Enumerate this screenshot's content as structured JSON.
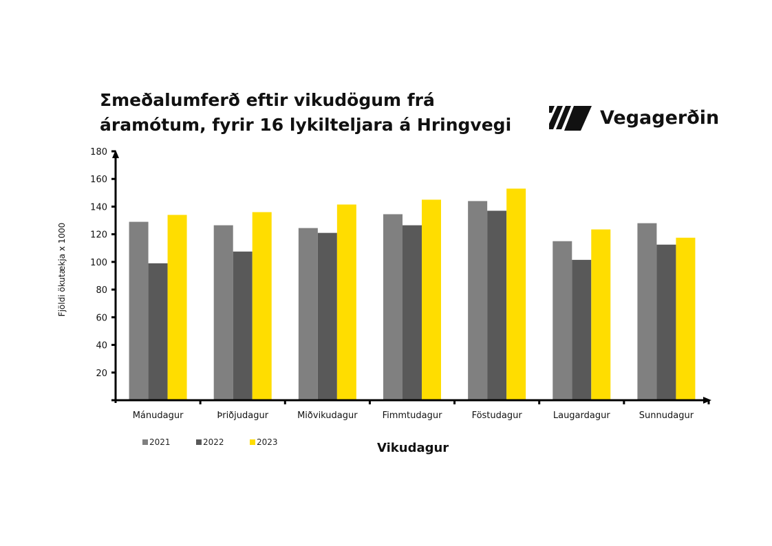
{
  "logo": {
    "text": "Vegagerðin"
  },
  "chart_data": {
    "type": "bar",
    "title": "Σmeðalumferð eftir vikudögum frá áramótum, fyrir 16 lykilteljara á Hringvegi",
    "title_lines": [
      "Σmeðalumferð eftir vikudögum frá",
      "áramótum, fyrir 16 lykilteljara á Hringvegi"
    ],
    "xlabel": "Vikudagur",
    "ylabel": "Fjöldi ökutækja x 1000",
    "ylim": [
      0,
      180
    ],
    "yticks": [
      20,
      40,
      60,
      80,
      100,
      120,
      140,
      160,
      180
    ],
    "grid": false,
    "legend_position": "bottom-left",
    "categories": [
      "Mánudagur",
      "Þriðjudagur",
      "Miðvikudagur",
      "Fimmtudagur",
      "Föstudagur",
      "Laugardagur",
      "Sunnudagur"
    ],
    "series": [
      {
        "name": "2021",
        "color": "#808080",
        "values": [
          129,
          126.5,
          124.5,
          134.5,
          144,
          115,
          128
        ]
      },
      {
        "name": "2022",
        "color": "#595959",
        "values": [
          99,
          107.5,
          121,
          126.5,
          137,
          101.5,
          112.5
        ]
      },
      {
        "name": "2023",
        "color": "#FFDD00",
        "values": [
          134,
          136,
          141.5,
          145,
          153,
          123.5,
          117.5
        ]
      }
    ]
  }
}
